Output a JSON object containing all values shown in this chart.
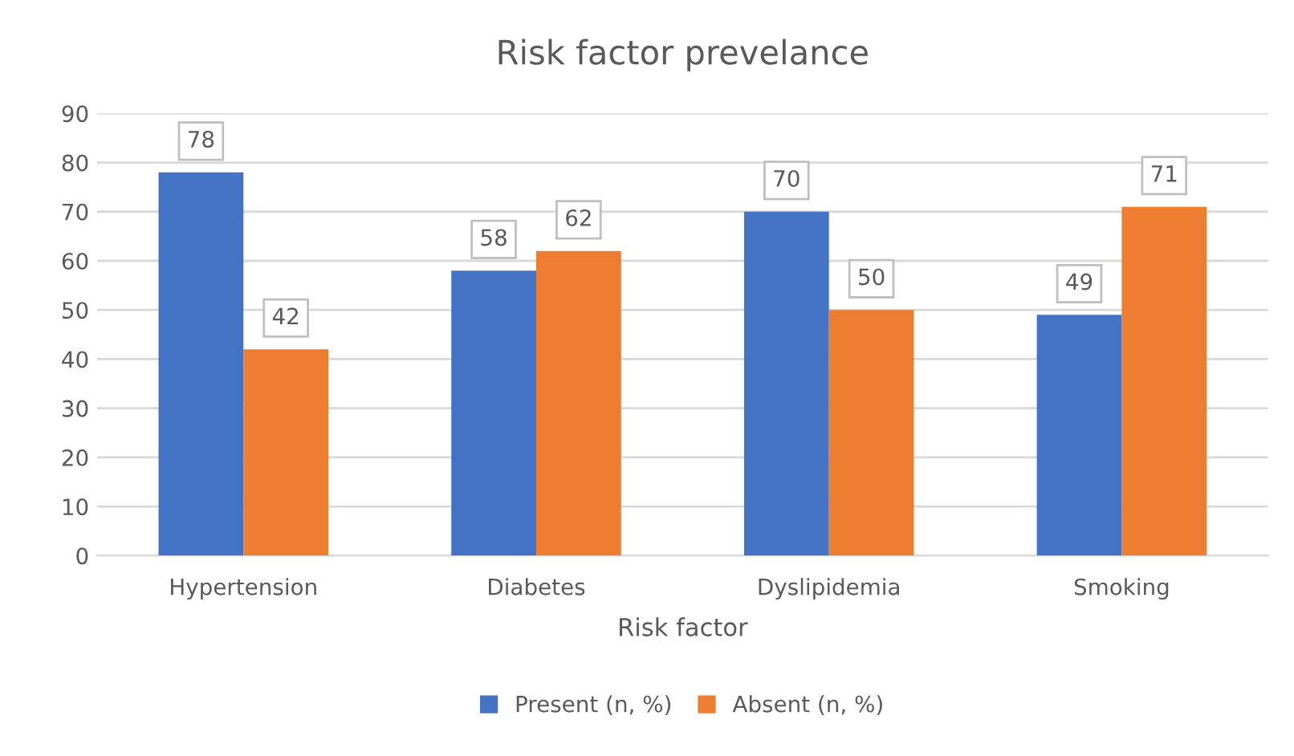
{
  "chart_data": {
    "type": "bar",
    "title": "Risk factor prevelance",
    "xlabel": "Risk factor",
    "categories": [
      "Hypertension",
      "Diabetes",
      "Dyslipidemia",
      "Smoking"
    ],
    "series": [
      {
        "name": "Present (n, %)",
        "color": "#4472c4",
        "values": [
          78,
          58,
          70,
          49
        ]
      },
      {
        "name": "Absent (n, %)",
        "color": "#ed7d31",
        "values": [
          42,
          62,
          50,
          71
        ]
      }
    ],
    "ylim": [
      0,
      90
    ],
    "yticks": [
      0,
      10,
      20,
      30,
      40,
      50,
      60,
      70,
      80,
      90
    ],
    "grid": "y",
    "legend": "bottom",
    "data_labels": true
  }
}
